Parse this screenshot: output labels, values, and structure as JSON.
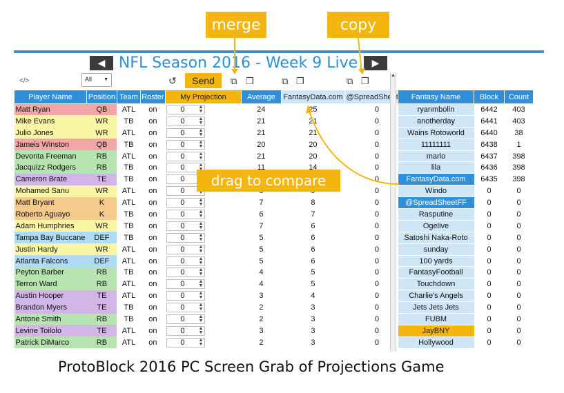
{
  "callouts": {
    "merge": "merge",
    "copy": "copy",
    "drag": "drag to compare"
  },
  "header": {
    "title": "NFL Season 2016 - Week 9 Live",
    "prev_icon": "left-triangle",
    "next_icon": "right-triangle"
  },
  "toolbar": {
    "code_label": "</>",
    "filter_value": "All",
    "send_label": "Send"
  },
  "columns": [
    "Player Name",
    "Position",
    "Team",
    "Roster",
    "My Projection",
    "Average",
    "FantasyData.com",
    "@SpreadSheetFF"
  ],
  "players": [
    {
      "name": "Matt Ryan",
      "pos": "QB",
      "team": "ATL",
      "roster": "on",
      "proj": "0",
      "avg": "24",
      "fd": "25",
      "ss": "0"
    },
    {
      "name": "Mike Evans",
      "pos": "WR",
      "team": "TB",
      "roster": "on",
      "proj": "0",
      "avg": "21",
      "fd": "21",
      "ss": "0"
    },
    {
      "name": "Julio Jones",
      "pos": "WR",
      "team": "ATL",
      "roster": "on",
      "proj": "0",
      "avg": "21",
      "fd": "21",
      "ss": "0"
    },
    {
      "name": "Jameis Winston",
      "pos": "QB",
      "team": "TB",
      "roster": "on",
      "proj": "0",
      "avg": "20",
      "fd": "20",
      "ss": "0"
    },
    {
      "name": "Devonta Freeman",
      "pos": "RB",
      "team": "ATL",
      "roster": "on",
      "proj": "0",
      "avg": "21",
      "fd": "20",
      "ss": "0"
    },
    {
      "name": "Jacquizz Rodgers",
      "pos": "RB",
      "team": "TB",
      "roster": "on",
      "proj": "0",
      "avg": "11",
      "fd": "14",
      "ss": "0"
    },
    {
      "name": "Cameron Brate",
      "pos": "TE",
      "team": "TB",
      "roster": "on",
      "proj": "0",
      "avg": "",
      "fd": "",
      "ss": "0"
    },
    {
      "name": "Mohamed Sanu",
      "pos": "WR",
      "team": "ATL",
      "roster": "on",
      "proj": "0",
      "avg": "8",
      "fd": "9",
      "ss": "0"
    },
    {
      "name": "Matt Bryant",
      "pos": "K",
      "team": "ATL",
      "roster": "on",
      "proj": "0",
      "avg": "7",
      "fd": "8",
      "ss": "0"
    },
    {
      "name": "Roberto Aguayo",
      "pos": "K",
      "team": "TB",
      "roster": "on",
      "proj": "0",
      "avg": "6",
      "fd": "7",
      "ss": "0"
    },
    {
      "name": "Adam Humphries",
      "pos": "WR",
      "team": "TB",
      "roster": "on",
      "proj": "0",
      "avg": "7",
      "fd": "6",
      "ss": "0"
    },
    {
      "name": "Tampa Bay Buccane",
      "pos": "DEF",
      "team": "TB",
      "roster": "on",
      "proj": "0",
      "avg": "5",
      "fd": "6",
      "ss": "0"
    },
    {
      "name": "Justin Hardy",
      "pos": "WR",
      "team": "ATL",
      "roster": "on",
      "proj": "0",
      "avg": "5",
      "fd": "6",
      "ss": "0"
    },
    {
      "name": "Atlanta Falcons",
      "pos": "DEF",
      "team": "ATL",
      "roster": "on",
      "proj": "0",
      "avg": "5",
      "fd": "6",
      "ss": "0"
    },
    {
      "name": "Peyton Barber",
      "pos": "RB",
      "team": "TB",
      "roster": "on",
      "proj": "0",
      "avg": "4",
      "fd": "5",
      "ss": "0"
    },
    {
      "name": "Terron Ward",
      "pos": "RB",
      "team": "ATL",
      "roster": "on",
      "proj": "0",
      "avg": "4",
      "fd": "5",
      "ss": "0"
    },
    {
      "name": "Austin Hooper",
      "pos": "TE",
      "team": "ATL",
      "roster": "on",
      "proj": "0",
      "avg": "3",
      "fd": "4",
      "ss": "0"
    },
    {
      "name": "Brandon Myers",
      "pos": "TE",
      "team": "TB",
      "roster": "on",
      "proj": "0",
      "avg": "2",
      "fd": "3",
      "ss": "0"
    },
    {
      "name": "Antone Smith",
      "pos": "RB",
      "team": "TB",
      "roster": "on",
      "proj": "0",
      "avg": "2",
      "fd": "3",
      "ss": "0"
    },
    {
      "name": "Levine Toilolo",
      "pos": "TE",
      "team": "ATL",
      "roster": "on",
      "proj": "0",
      "avg": "3",
      "fd": "3",
      "ss": "0"
    },
    {
      "name": "Patrick DiMarco",
      "pos": "RB",
      "team": "ATL",
      "roster": "on",
      "proj": "0",
      "avg": "2",
      "fd": "3",
      "ss": "0"
    }
  ],
  "side_columns": [
    "Fantasy Name",
    "Block",
    "Count"
  ],
  "leaders": [
    {
      "name": "ryanmbolin",
      "block": "6442",
      "count": "403",
      "hl": ""
    },
    {
      "name": "anotherday",
      "block": "6441",
      "count": "403",
      "hl": ""
    },
    {
      "name": "Wains Rotoworld",
      "block": "6440",
      "count": "38",
      "hl": ""
    },
    {
      "name": "11111111",
      "block": "6438",
      "count": "1",
      "hl": ""
    },
    {
      "name": "marlo",
      "block": "6437",
      "count": "398",
      "hl": ""
    },
    {
      "name": "lila",
      "block": "6436",
      "count": "398",
      "hl": ""
    },
    {
      "name": "FantasyData.com",
      "block": "6435",
      "count": "398",
      "hl": "blue"
    },
    {
      "name": "Windo",
      "block": "0",
      "count": "0",
      "hl": ""
    },
    {
      "name": "@SpreadSheetFF",
      "block": "0",
      "count": "0",
      "hl": "blue"
    },
    {
      "name": "Rasputine",
      "block": "0",
      "count": "0",
      "hl": ""
    },
    {
      "name": "Ogelive",
      "block": "0",
      "count": "0",
      "hl": ""
    },
    {
      "name": "Satoshi Naka-Roto",
      "block": "0",
      "count": "0",
      "hl": ""
    },
    {
      "name": "sunday",
      "block": "0",
      "count": "0",
      "hl": ""
    },
    {
      "name": "100 yards",
      "block": "0",
      "count": "0",
      "hl": ""
    },
    {
      "name": "FantasyFootball",
      "block": "0",
      "count": "0",
      "hl": ""
    },
    {
      "name": "Touchdown",
      "block": "0",
      "count": "0",
      "hl": ""
    },
    {
      "name": "Charlie's Angels",
      "block": "0",
      "count": "0",
      "hl": ""
    },
    {
      "name": "Jets Jets Jets",
      "block": "0",
      "count": "0",
      "hl": ""
    },
    {
      "name": "FUBM",
      "block": "0",
      "count": "0",
      "hl": ""
    },
    {
      "name": "JayBNY",
      "block": "0",
      "count": "0",
      "hl": "orange"
    },
    {
      "name": "Hollywood",
      "block": "0",
      "count": "0",
      "hl": ""
    }
  ],
  "colors": {
    "accent": "#2f8fd8",
    "highlight": "#f5b50f",
    "team_text": "#c0172a",
    "QB": "#f2a6a6",
    "WR": "#fbf5a6",
    "RB": "#b6e3b0",
    "TE": "#d2b6e8",
    "K": "#f6c98c",
    "DEF": "#aedcf4"
  },
  "caption": "ProtoBlock 2016 PC Screen Grab of Projections Game"
}
